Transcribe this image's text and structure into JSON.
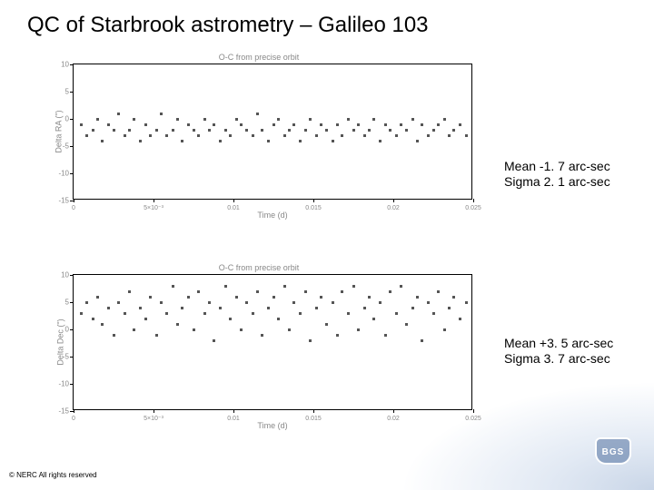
{
  "title": "QC of Starbrook astrometry – Galileo 103",
  "copyright": "© NERC All rights reserved",
  "logo_text": "BGS",
  "chart1": {
    "type": "scatter",
    "title": "O-C from precise orbit",
    "ylabel": "Delta RA (\")",
    "xlabel": "Time (d)",
    "ylim": [
      -15,
      10
    ],
    "xlim": [
      0,
      0.025
    ],
    "yticks": [
      -15,
      -10,
      -5,
      0,
      5,
      10
    ],
    "xticks": [
      {
        "pos": 0,
        "label": "0"
      },
      {
        "pos": 0.005,
        "label": "5×10⁻³"
      },
      {
        "pos": 0.01,
        "label": "0.01"
      },
      {
        "pos": 0.015,
        "label": "0.015"
      },
      {
        "pos": 0.02,
        "label": "0.02"
      },
      {
        "pos": 0.025,
        "label": "0.025"
      }
    ],
    "point_color": "#555555",
    "border_color": "#000000",
    "background_color": "#ffffff",
    "data": [
      [
        0.0005,
        -1
      ],
      [
        0.0008,
        -3
      ],
      [
        0.0012,
        -2
      ],
      [
        0.0015,
        0
      ],
      [
        0.0018,
        -4
      ],
      [
        0.0022,
        -1
      ],
      [
        0.0025,
        -2
      ],
      [
        0.0028,
        1
      ],
      [
        0.0032,
        -3
      ],
      [
        0.0035,
        -2
      ],
      [
        0.0038,
        0
      ],
      [
        0.0042,
        -4
      ],
      [
        0.0045,
        -1
      ],
      [
        0.0048,
        -3
      ],
      [
        0.0052,
        -2
      ],
      [
        0.0055,
        1
      ],
      [
        0.0058,
        -3
      ],
      [
        0.0062,
        -2
      ],
      [
        0.0065,
        0
      ],
      [
        0.0068,
        -4
      ],
      [
        0.0072,
        -1
      ],
      [
        0.0075,
        -2
      ],
      [
        0.0078,
        -3
      ],
      [
        0.0082,
        0
      ],
      [
        0.0085,
        -2
      ],
      [
        0.0088,
        -1
      ],
      [
        0.0092,
        -4
      ],
      [
        0.0095,
        -2
      ],
      [
        0.0098,
        -3
      ],
      [
        0.0102,
        0
      ],
      [
        0.0105,
        -1
      ],
      [
        0.0108,
        -2
      ],
      [
        0.0112,
        -3
      ],
      [
        0.0115,
        1
      ],
      [
        0.0118,
        -2
      ],
      [
        0.0122,
        -4
      ],
      [
        0.0125,
        -1
      ],
      [
        0.0128,
        0
      ],
      [
        0.0132,
        -3
      ],
      [
        0.0135,
        -2
      ],
      [
        0.0138,
        -1
      ],
      [
        0.0142,
        -4
      ],
      [
        0.0145,
        -2
      ],
      [
        0.0148,
        0
      ],
      [
        0.0152,
        -3
      ],
      [
        0.0155,
        -1
      ],
      [
        0.0158,
        -2
      ],
      [
        0.0162,
        -4
      ],
      [
        0.0165,
        -1
      ],
      [
        0.0168,
        -3
      ],
      [
        0.0172,
        0
      ],
      [
        0.0175,
        -2
      ],
      [
        0.0178,
        -1
      ],
      [
        0.0182,
        -3
      ],
      [
        0.0185,
        -2
      ],
      [
        0.0188,
        0
      ],
      [
        0.0192,
        -4
      ],
      [
        0.0195,
        -1
      ],
      [
        0.0198,
        -2
      ],
      [
        0.0202,
        -3
      ],
      [
        0.0205,
        -1
      ],
      [
        0.0208,
        -2
      ],
      [
        0.0212,
        0
      ],
      [
        0.0215,
        -4
      ],
      [
        0.0218,
        -1
      ],
      [
        0.0222,
        -3
      ],
      [
        0.0225,
        -2
      ],
      [
        0.0228,
        -1
      ],
      [
        0.0232,
        0
      ],
      [
        0.0235,
        -3
      ],
      [
        0.0238,
        -2
      ],
      [
        0.0242,
        -1
      ],
      [
        0.0246,
        -3
      ]
    ]
  },
  "chart2": {
    "type": "scatter",
    "title": "O-C from precise orbit",
    "ylabel": "Delta Dec (\")",
    "xlabel": "Time (d)",
    "ylim": [
      -15,
      10
    ],
    "xlim": [
      0,
      0.025
    ],
    "yticks": [
      -15,
      -10,
      -5,
      0,
      5,
      10
    ],
    "xticks": [
      {
        "pos": 0,
        "label": "0"
      },
      {
        "pos": 0.005,
        "label": "5×10⁻³"
      },
      {
        "pos": 0.01,
        "label": "0.01"
      },
      {
        "pos": 0.015,
        "label": "0.015"
      },
      {
        "pos": 0.02,
        "label": "0.02"
      },
      {
        "pos": 0.025,
        "label": "0.025"
      }
    ],
    "point_color": "#555555",
    "border_color": "#000000",
    "background_color": "#ffffff",
    "data": [
      [
        0.0005,
        3
      ],
      [
        0.0008,
        5
      ],
      [
        0.0012,
        2
      ],
      [
        0.0015,
        6
      ],
      [
        0.0018,
        1
      ],
      [
        0.0022,
        4
      ],
      [
        0.0025,
        -1
      ],
      [
        0.0028,
        5
      ],
      [
        0.0032,
        3
      ],
      [
        0.0035,
        7
      ],
      [
        0.0038,
        0
      ],
      [
        0.0042,
        4
      ],
      [
        0.0045,
        2
      ],
      [
        0.0048,
        6
      ],
      [
        0.0052,
        -1
      ],
      [
        0.0055,
        5
      ],
      [
        0.0058,
        3
      ],
      [
        0.0062,
        8
      ],
      [
        0.0065,
        1
      ],
      [
        0.0068,
        4
      ],
      [
        0.0072,
        6
      ],
      [
        0.0075,
        0
      ],
      [
        0.0078,
        7
      ],
      [
        0.0082,
        3
      ],
      [
        0.0085,
        5
      ],
      [
        0.0088,
        -2
      ],
      [
        0.0092,
        4
      ],
      [
        0.0095,
        8
      ],
      [
        0.0098,
        2
      ],
      [
        0.0102,
        6
      ],
      [
        0.0105,
        0
      ],
      [
        0.0108,
        5
      ],
      [
        0.0112,
        3
      ],
      [
        0.0115,
        7
      ],
      [
        0.0118,
        -1
      ],
      [
        0.0122,
        4
      ],
      [
        0.0125,
        6
      ],
      [
        0.0128,
        2
      ],
      [
        0.0132,
        8
      ],
      [
        0.0135,
        0
      ],
      [
        0.0138,
        5
      ],
      [
        0.0142,
        3
      ],
      [
        0.0145,
        7
      ],
      [
        0.0148,
        -2
      ],
      [
        0.0152,
        4
      ],
      [
        0.0155,
        6
      ],
      [
        0.0158,
        1
      ],
      [
        0.0162,
        5
      ],
      [
        0.0165,
        -1
      ],
      [
        0.0168,
        7
      ],
      [
        0.0172,
        3
      ],
      [
        0.0175,
        8
      ],
      [
        0.0178,
        0
      ],
      [
        0.0182,
        4
      ],
      [
        0.0185,
        6
      ],
      [
        0.0188,
        2
      ],
      [
        0.0192,
        5
      ],
      [
        0.0195,
        -1
      ],
      [
        0.0198,
        7
      ],
      [
        0.0202,
        3
      ],
      [
        0.0205,
        8
      ],
      [
        0.0208,
        1
      ],
      [
        0.0212,
        4
      ],
      [
        0.0215,
        6
      ],
      [
        0.0218,
        -2
      ],
      [
        0.0222,
        5
      ],
      [
        0.0225,
        3
      ],
      [
        0.0228,
        7
      ],
      [
        0.0232,
        0
      ],
      [
        0.0235,
        4
      ],
      [
        0.0238,
        6
      ],
      [
        0.0242,
        2
      ],
      [
        0.0246,
        5
      ]
    ]
  },
  "stats1": {
    "mean": "Mean -1. 7 arc-sec",
    "sigma": "Sigma 2. 1 arc-sec"
  },
  "stats2": {
    "mean": "Mean +3. 5 arc-sec",
    "sigma": "Sigma  3. 7 arc-sec"
  }
}
